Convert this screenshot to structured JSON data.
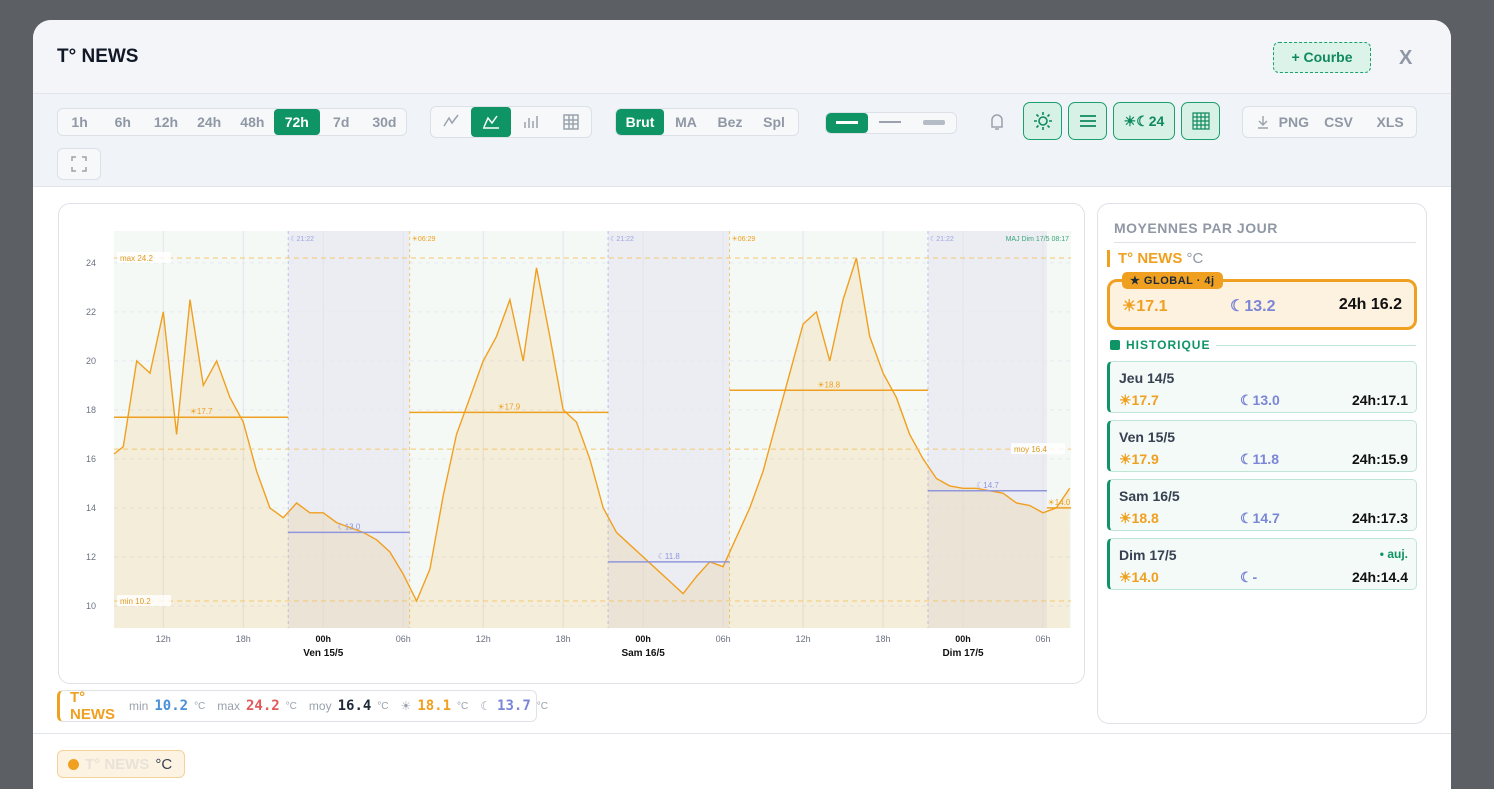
{
  "header": {
    "title": "T° NEWS",
    "add_button": "+ Courbe",
    "close": "X"
  },
  "toolbar": {
    "ranges": [
      "1h",
      "6h",
      "12h",
      "24h",
      "48h",
      "72h",
      "7d",
      "30d"
    ],
    "active_range": 5,
    "chart_modes": 4,
    "active_mode": 1,
    "smoothing": [
      "Brut",
      "MA",
      "Bez",
      "Spl"
    ],
    "active_smoothing": 0,
    "toggle_label": "☀☾24",
    "exports": [
      "PNG",
      "CSV",
      "XLS"
    ]
  },
  "chart_data": {
    "type": "area",
    "update_label": "MAJ Dim 17/5 08:17",
    "x": [
      8.3,
      9,
      10,
      11,
      12,
      13,
      14,
      15,
      16,
      17,
      18,
      19,
      20,
      21,
      22,
      23,
      24,
      25,
      26,
      27,
      28,
      29,
      30,
      31,
      32,
      33,
      34,
      35,
      36,
      37,
      38,
      39,
      40,
      41,
      42,
      43,
      44,
      45,
      46,
      47,
      48,
      49,
      50,
      51,
      52,
      53,
      54,
      55,
      56,
      57,
      58,
      59,
      60,
      61,
      62,
      63,
      64,
      65,
      66,
      67,
      68,
      69,
      70,
      71,
      72,
      73,
      74,
      75,
      76,
      77,
      78,
      79,
      80
    ],
    "series": [
      {
        "name": "T° NEWS",
        "color": "#f0a020",
        "values": [
          16.2,
          16.5,
          20,
          19.5,
          22,
          17,
          22.5,
          19,
          20,
          18.5,
          17.5,
          15.5,
          14,
          13.6,
          14.2,
          13.8,
          13.8,
          13.4,
          13.2,
          13.0,
          12.7,
          12.2,
          11.3,
          10.2,
          11.5,
          14.5,
          17,
          18.5,
          20,
          21,
          22.5,
          20,
          23.8,
          21,
          18,
          17.5,
          16,
          14,
          13,
          12.5,
          12,
          11.5,
          11,
          10.5,
          11.2,
          11.8,
          11.6,
          12.8,
          14,
          15.5,
          17.5,
          19.5,
          21.5,
          22,
          20,
          22.5,
          24.2,
          21,
          19.5,
          18.5,
          17,
          16,
          15.2,
          14.9,
          14.8,
          14.8,
          14.7,
          14.6,
          14.2,
          14.1,
          13.8,
          14,
          14.8
        ]
      }
    ],
    "xlim": [
      8.3,
      80.1
    ],
    "ylim": [
      9.1,
      25.3
    ],
    "yticks": [
      10,
      12,
      14,
      16,
      18,
      20,
      22,
      24
    ],
    "xticks": [
      {
        "value": 12,
        "label": "12h"
      },
      {
        "value": 18,
        "label": "18h"
      },
      {
        "value": 24,
        "label": "00h"
      },
      {
        "value": 30,
        "label": "06h"
      },
      {
        "value": 36,
        "label": "12h"
      },
      {
        "value": 42,
        "label": "18h"
      },
      {
        "value": 48,
        "label": "00h"
      },
      {
        "value": 54,
        "label": "06h"
      },
      {
        "value": 60,
        "label": "12h"
      },
      {
        "value": 66,
        "label": "18h"
      },
      {
        "value": 72,
        "label": "00h"
      },
      {
        "value": 78,
        "label": "06h"
      }
    ],
    "day_labels": [
      {
        "value": 24,
        "label": "Ven 15/5"
      },
      {
        "value": 48,
        "label": "Sam 16/5"
      },
      {
        "value": 72,
        "label": "Dim 17/5"
      }
    ],
    "reference_lines": [
      {
        "value": 24.2,
        "label": "max 24.2"
      },
      {
        "value": 10.2,
        "label": "min 10.2"
      },
      {
        "value": 16.4,
        "label": "moy 16.4"
      }
    ],
    "events": [
      {
        "value": 21.37,
        "label": "☾21:22"
      },
      {
        "value": 30.48,
        "label": "☀06:29"
      },
      {
        "value": 45.37,
        "label": "☾21:22"
      },
      {
        "value": 54.48,
        "label": "☀06:29"
      },
      {
        "value": 69.37,
        "label": "☾21:22"
      }
    ],
    "segments": [
      {
        "kind": "day",
        "label": "☀17.7",
        "value": 17.7,
        "x": [
          8.3,
          21.37
        ]
      },
      {
        "kind": "night",
        "label": "☾13.0",
        "value": 13.0,
        "x": [
          21.37,
          30.48
        ]
      },
      {
        "kind": "day",
        "label": "☀17.9",
        "value": 17.9,
        "x": [
          30.48,
          45.37
        ]
      },
      {
        "kind": "night",
        "label": "☾11.8",
        "value": 11.8,
        "x": [
          45.37,
          54.48
        ]
      },
      {
        "kind": "day",
        "label": "☀18.8",
        "value": 18.8,
        "x": [
          54.48,
          69.37
        ]
      },
      {
        "kind": "night",
        "label": "☾14.7",
        "value": 14.7,
        "x": [
          69.37,
          78.3
        ]
      },
      {
        "kind": "day",
        "label": "☀14.0",
        "value": 14.0,
        "x": [
          78.3,
          80.1
        ]
      }
    ],
    "grid": true
  },
  "stats": [
    {
      "label": "min",
      "value": 10.2,
      "unit": "°C",
      "color": "#4a90d9"
    },
    {
      "label": "max",
      "value": 24.2,
      "unit": "°C",
      "color": "#e05a5a"
    },
    {
      "label": "moy",
      "value": 16.4,
      "unit": "°C",
      "color": "#1f2a37"
    },
    {
      "label": "☀",
      "value": 18.1,
      "unit": "°C",
      "color": "#f0a020"
    },
    {
      "label": "☾",
      "value": 13.7,
      "unit": "°C",
      "color": "#7b86d6"
    }
  ],
  "sidebar": {
    "title": "MOYENNES PAR JOUR",
    "sensor": "T° NEWS",
    "unit": "°C",
    "global": {
      "badge": "★ GLOBAL · 4j",
      "day": "☀17.1",
      "night": "☾13.2",
      "avg": "24h 16.2"
    },
    "history_title": "HISTORIQUE",
    "days": [
      {
        "date": "Jeu 14/5",
        "day": "☀17.7",
        "night": "☾13.0",
        "avg": "24h:17.1"
      },
      {
        "date": "Ven 15/5",
        "day": "☀17.9",
        "night": "☾11.8",
        "avg": "24h:15.9"
      },
      {
        "date": "Sam 16/5",
        "day": "☀18.8",
        "night": "☾14.7",
        "avg": "24h:17.3"
      },
      {
        "date": "Dim 17/5",
        "tag": "• auj.",
        "day": "☀14.0",
        "night": "☾-",
        "avg": "24h:14.4"
      }
    ]
  },
  "footer": {
    "chip": "T° NEWS",
    "unit": "°C"
  }
}
